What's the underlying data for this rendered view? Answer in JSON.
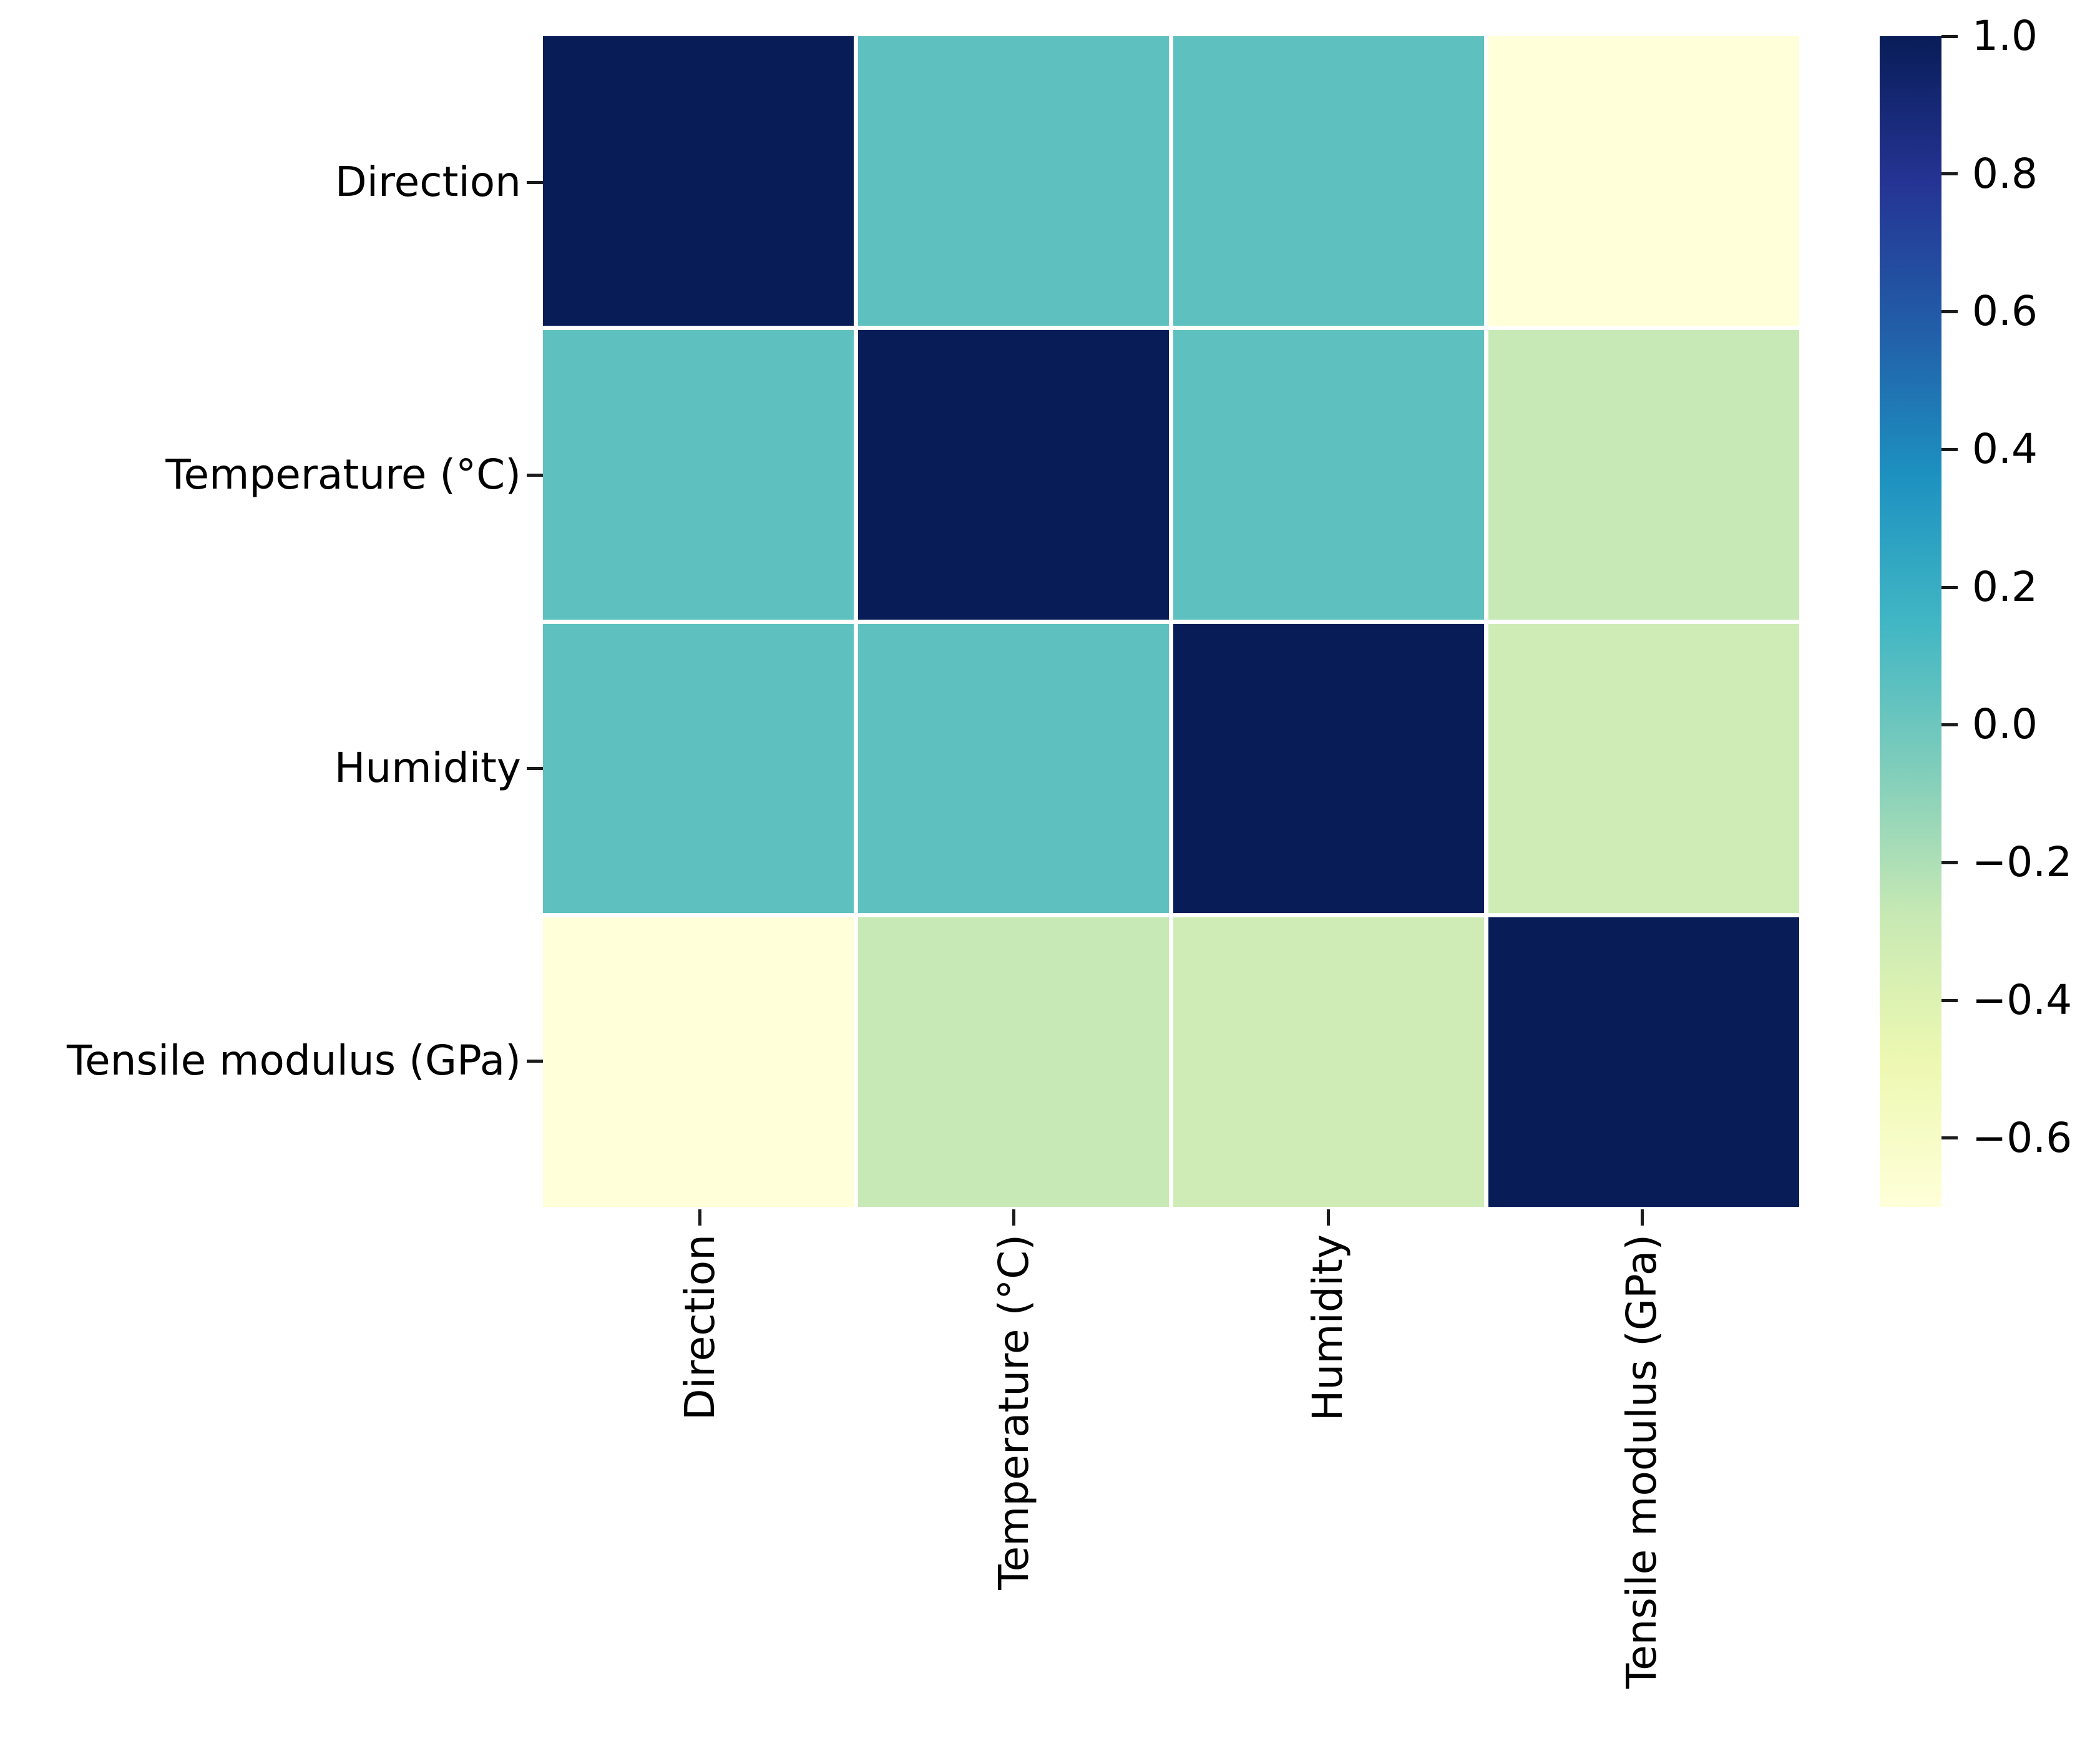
{
  "chart_data": {
    "type": "heatmap",
    "subtype": "correlation-matrix",
    "title": "",
    "colormap": "YlGnBu",
    "vmin": -0.7,
    "vmax": 1.0,
    "grid_line_color": "#ffffff",
    "variables": [
      "Direction",
      "Temperature (°C)",
      "Humidity",
      "Tensile modulus (GPa)"
    ],
    "matrix": [
      [
        1.0,
        0.05,
        0.05,
        -0.7
      ],
      [
        0.05,
        1.0,
        0.05,
        -0.28
      ],
      [
        0.05,
        0.05,
        1.0,
        -0.32
      ],
      [
        -0.7,
        -0.28,
        -0.32,
        1.0
      ]
    ],
    "cell_colors": [
      [
        "#081d58",
        "#5ec1c0",
        "#5ec1c0",
        "#ffffd9"
      ],
      [
        "#5ec1c0",
        "#081d58",
        "#5ec1c0",
        "#c6e9b5"
      ],
      [
        "#5ec1c0",
        "#5ec1c0",
        "#081d58",
        "#cfecb6"
      ],
      [
        "#ffffd9",
        "#c6e9b5",
        "#cfecb6",
        "#081d58"
      ]
    ],
    "colorbar": {
      "position": "right",
      "gradient_stops_top_to_bottom": [
        "#081d58",
        "#253494",
        "#225ea8",
        "#1d91c0",
        "#41b6c4",
        "#7fcdbb",
        "#c7e9b4",
        "#edf8b1",
        "#ffffd9"
      ],
      "tick_values": [
        1.0,
        0.8,
        0.6,
        0.4,
        0.2,
        0.0,
        -0.2,
        -0.4,
        -0.6
      ],
      "tick_labels": [
        "1.0",
        "0.8",
        "0.6",
        "0.4",
        "0.2",
        "0.0",
        "−0.2",
        "−0.4",
        "−0.6"
      ]
    }
  },
  "axes": {
    "y_tick_labels": [
      "Direction",
      "Temperature (°C)",
      "Humidity",
      "Tensile modulus (GPa)"
    ],
    "x_tick_labels": [
      "Direction",
      "Temperature (°C)",
      "Humidity",
      "Tensile modulus (GPa)"
    ],
    "tick_color": "#1a1a1a",
    "text_color": "#000000"
  }
}
